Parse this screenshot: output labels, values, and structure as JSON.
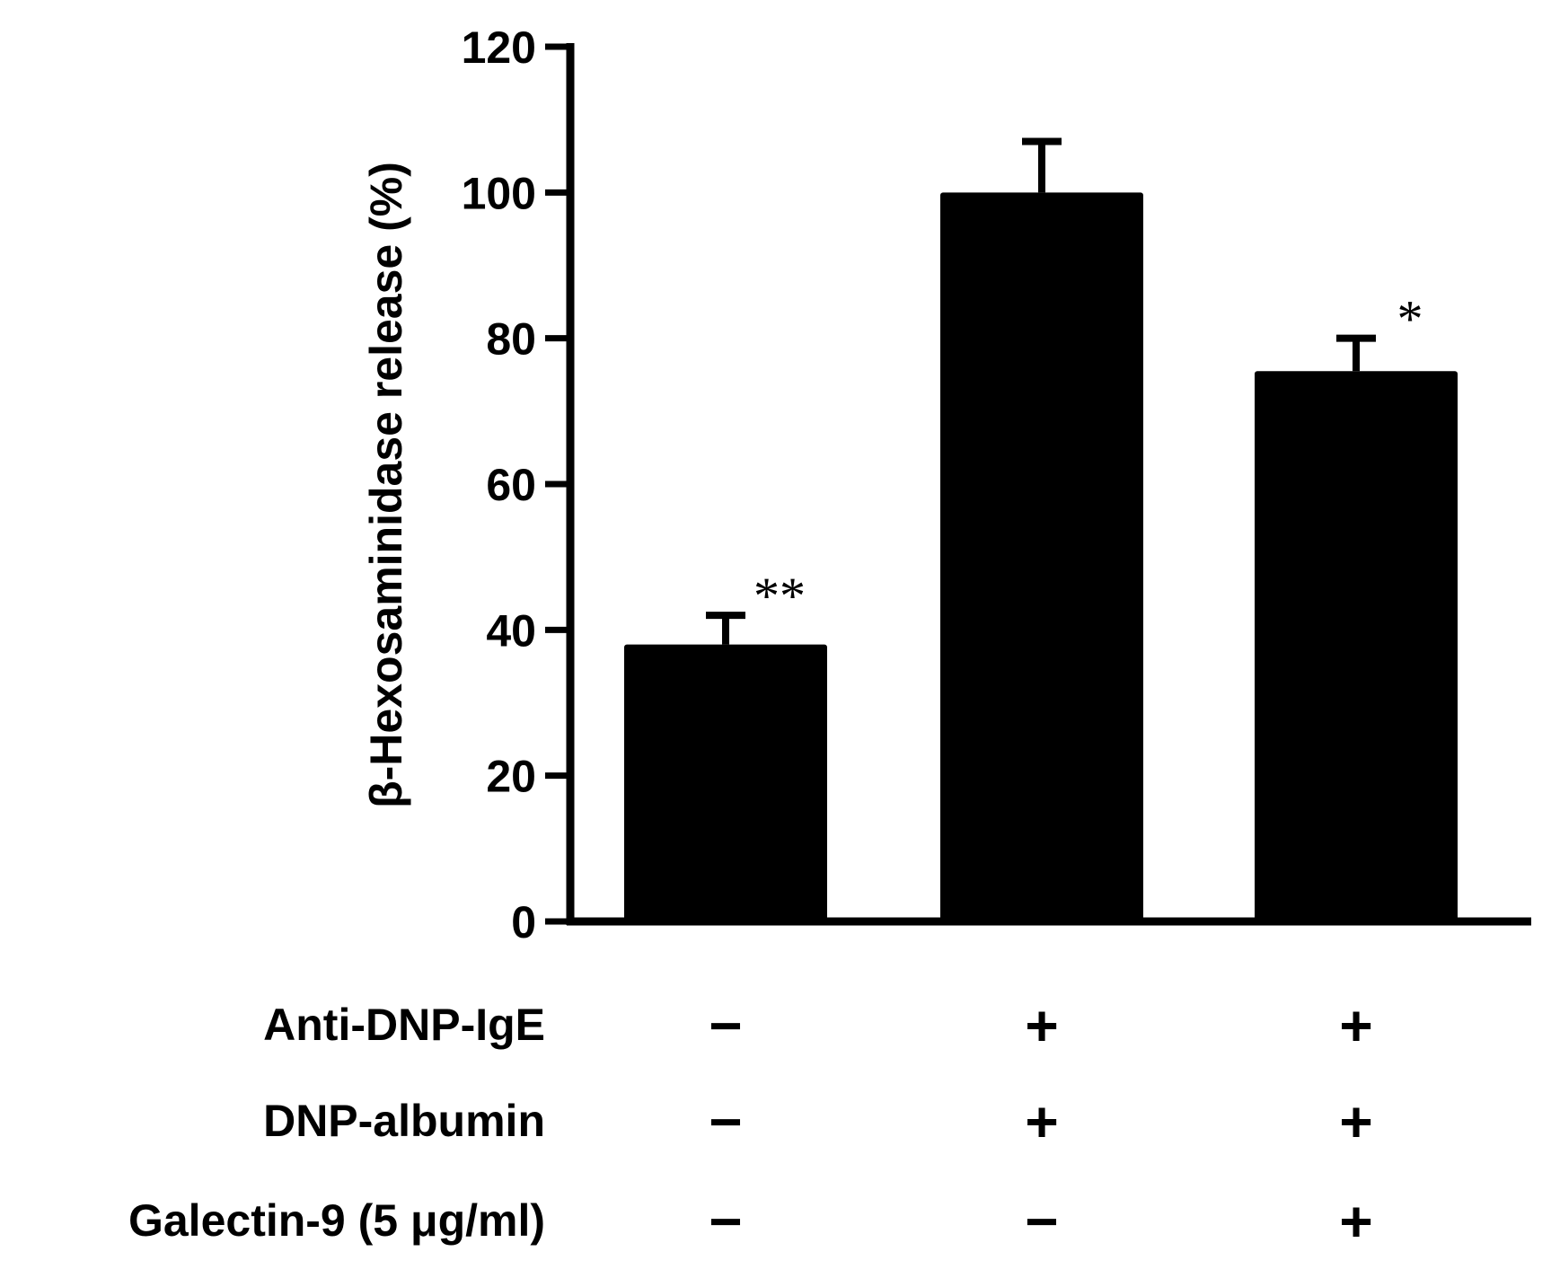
{
  "chart_data": {
    "type": "bar",
    "title": "",
    "xlabel": "",
    "ylabel": "β-Hexosaminidase release (%)",
    "ylim": [
      0,
      120
    ],
    "yticks": [
      0,
      20,
      40,
      60,
      80,
      100,
      120
    ],
    "grid": false,
    "bar_color": "#000000",
    "values": [
      38,
      100,
      75.5
    ],
    "errors": [
      4,
      7,
      4.5
    ],
    "annotations": [
      "**",
      "",
      "*"
    ],
    "conditions": [
      {
        "label": "Anti-DNP-IgE",
        "signs": [
          "−",
          "+",
          "+"
        ]
      },
      {
        "label": "DNP-albumin",
        "signs": [
          "−",
          "+",
          "+"
        ]
      },
      {
        "label": "Galectin-9 (5 μg/ml)",
        "signs": [
          "−",
          "−",
          "+"
        ]
      }
    ]
  }
}
